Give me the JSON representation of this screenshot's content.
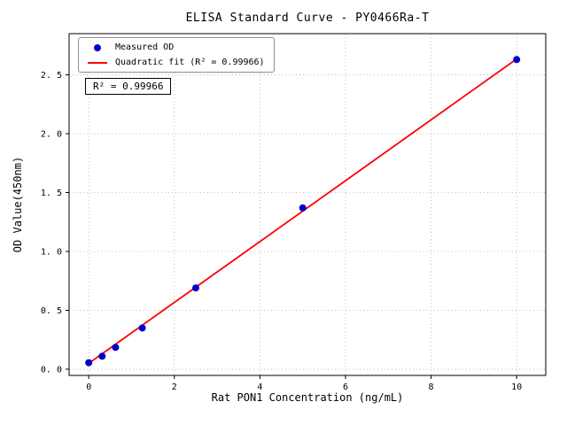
{
  "chart_data": {
    "type": "scatter",
    "title": "ELISA Standard Curve - PY0466Ra-T",
    "xlabel": "Rat PON1 Concentration (ng/mL)",
    "ylabel": "OD Value(450nm)",
    "xlim": [
      -0.46,
      10.68
    ],
    "ylim": [
      -0.053,
      2.85
    ],
    "xticks": [
      0,
      2,
      4,
      6,
      8,
      10
    ],
    "xtick_labels": [
      "0",
      "2",
      "4",
      "6",
      "8",
      "10"
    ],
    "yticks": [
      0,
      0.5,
      1.0,
      1.5,
      2.0,
      2.5
    ],
    "ytick_labels": [
      "0. 0",
      "0. 5",
      "1. 0",
      "1. 5",
      "2. 0",
      "2. 5"
    ],
    "grid": true,
    "legend_position": "upper left",
    "annotation": "R² = 0.99966",
    "series": [
      {
        "name": "Measured OD",
        "type": "scatter",
        "color": "#0000cd",
        "x": [
          0,
          0.3125,
          0.625,
          1.25,
          2.5,
          5,
          10
        ],
        "y": [
          0.055,
          0.11,
          0.185,
          0.35,
          0.69,
          1.37,
          2.63
        ]
      },
      {
        "name": "Quadratic fit (R² = 0.99966)",
        "type": "line",
        "color": "#ff0000",
        "x": [
          0,
          10
        ],
        "y": [
          0.05,
          2.635
        ]
      }
    ]
  }
}
